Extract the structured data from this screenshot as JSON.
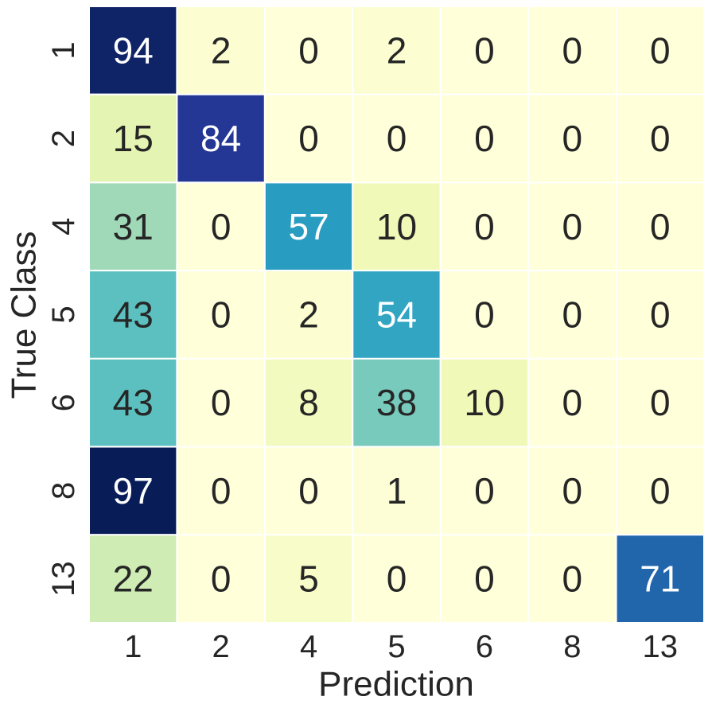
{
  "chart_data": {
    "type": "heatmap",
    "x_label": "Prediction",
    "y_label": "True Class",
    "x_categories": [
      "1",
      "2",
      "4",
      "5",
      "6",
      "8",
      "13"
    ],
    "y_categories": [
      "1",
      "2",
      "4",
      "5",
      "6",
      "8",
      "13"
    ],
    "values": [
      [
        94,
        2,
        0,
        2,
        0,
        0,
        0
      ],
      [
        15,
        84,
        0,
        0,
        0,
        0,
        0
      ],
      [
        31,
        0,
        57,
        10,
        0,
        0,
        0
      ],
      [
        43,
        0,
        2,
        54,
        0,
        0,
        0
      ],
      [
        43,
        0,
        8,
        38,
        10,
        0,
        0
      ],
      [
        97,
        0,
        0,
        1,
        0,
        0,
        0
      ],
      [
        22,
        0,
        5,
        0,
        0,
        0,
        71
      ]
    ],
    "colormap": "YlGnBu",
    "annotate": true
  }
}
